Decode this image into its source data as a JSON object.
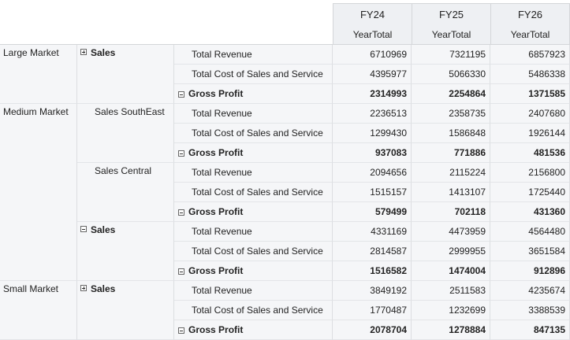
{
  "columns": [
    {
      "year": "FY24",
      "sub": "YearTotal"
    },
    {
      "year": "FY25",
      "sub": "YearTotal"
    },
    {
      "year": "FY26",
      "sub": "YearTotal"
    }
  ],
  "markets": {
    "large": "Large Market",
    "medium": "Medium Market",
    "small": "Small Market"
  },
  "subs": {
    "large_sales": "Sales",
    "southeast": "Sales SouthEast",
    "central": "Sales Central",
    "medium_sales": "Sales",
    "small_sales": "Sales"
  },
  "measures": {
    "revenue": "Total Revenue",
    "cost": "Total Cost of Sales and Service",
    "gross": "Gross Profit"
  },
  "rows": [
    {
      "values": [
        "6710969",
        "7321195",
        "6857923"
      ]
    },
    {
      "values": [
        "4395977",
        "5066330",
        "5486338"
      ]
    },
    {
      "values": [
        "2314993",
        "2254864",
        "1371585"
      ]
    },
    {
      "values": [
        "2236513",
        "2358735",
        "2407680"
      ]
    },
    {
      "values": [
        "1299430",
        "1586848",
        "1926144"
      ]
    },
    {
      "values": [
        "937083",
        "771886",
        "481536"
      ]
    },
    {
      "values": [
        "2094656",
        "2115224",
        "2156800"
      ]
    },
    {
      "values": [
        "1515157",
        "1413107",
        "1725440"
      ]
    },
    {
      "values": [
        "579499",
        "702118",
        "431360"
      ]
    },
    {
      "values": [
        "4331169",
        "4473959",
        "4564480"
      ]
    },
    {
      "values": [
        "2814587",
        "2999955",
        "3651584"
      ]
    },
    {
      "values": [
        "1516582",
        "1474004",
        "912896"
      ]
    },
    {
      "values": [
        "3849192",
        "2511583",
        "4235674"
      ]
    },
    {
      "values": [
        "1770487",
        "1232699",
        "3388539"
      ]
    },
    {
      "values": [
        "2078704",
        "1278884",
        "847135"
      ]
    }
  ]
}
